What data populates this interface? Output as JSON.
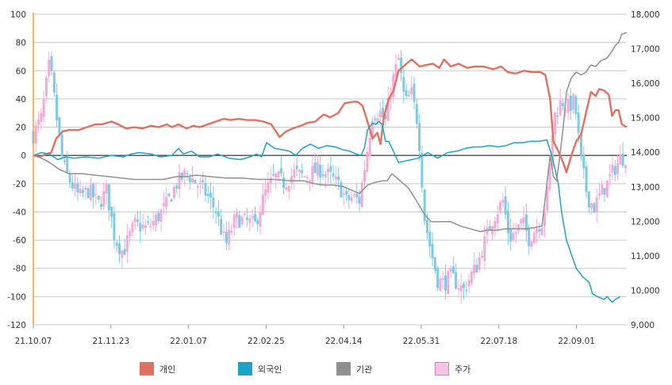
{
  "chart_data": {
    "type": "line",
    "x_labels": [
      "21.10.07",
      "21.11.23",
      "22.01.07",
      "22.02.25",
      "22.04.14",
      "22.05.31",
      "22.07.18",
      "22.09.01"
    ],
    "left_axis": {
      "ticks": [
        "100",
        "80",
        "60",
        "40",
        "20",
        "0",
        "-20",
        "-40",
        "-60",
        "-80",
        "-100",
        "-120"
      ],
      "range": [
        -120,
        100
      ]
    },
    "right_axis": {
      "ticks": [
        "18,000",
        "17,000",
        "16,000",
        "15,000",
        "14,000",
        "13,000",
        "12,000",
        "11,000",
        "10,000",
        "9,000"
      ],
      "range": [
        9000,
        18000
      ]
    },
    "grid": true,
    "legend_position": "bottom",
    "series": [
      {
        "name": "개인",
        "color": "#e07060",
        "axis": "left",
        "points": [
          [
            0,
            0
          ],
          [
            4,
            -1
          ],
          [
            8,
            1
          ],
          [
            11,
            2
          ],
          [
            14,
            12
          ],
          [
            18,
            17
          ],
          [
            22,
            18
          ],
          [
            28,
            18
          ],
          [
            33,
            20
          ],
          [
            38,
            22
          ],
          [
            42,
            22
          ],
          [
            48,
            24
          ],
          [
            52,
            22
          ],
          [
            57,
            19
          ],
          [
            62,
            20
          ],
          [
            67,
            19
          ],
          [
            72,
            21
          ],
          [
            77,
            20
          ],
          [
            82,
            22
          ],
          [
            85,
            20
          ],
          [
            89,
            22
          ],
          [
            94,
            19
          ],
          [
            98,
            21
          ],
          [
            102,
            20
          ],
          [
            107,
            22
          ],
          [
            112,
            24
          ],
          [
            117,
            26
          ],
          [
            121,
            25
          ],
          [
            126,
            26
          ],
          [
            131,
            25
          ],
          [
            136,
            25
          ],
          [
            141,
            24
          ],
          [
            146,
            22
          ],
          [
            151,
            13
          ],
          [
            155,
            17
          ],
          [
            159,
            19
          ],
          [
            164,
            21
          ],
          [
            168,
            23
          ],
          [
            173,
            24
          ],
          [
            178,
            29
          ],
          [
            182,
            27
          ],
          [
            187,
            30
          ],
          [
            191,
            37
          ],
          [
            196,
            38
          ],
          [
            199,
            38
          ],
          [
            202,
            35
          ],
          [
            206,
            20
          ],
          [
            208,
            12
          ],
          [
            211,
            16
          ],
          [
            213,
            8
          ],
          [
            215,
            27
          ],
          [
            218,
            40
          ],
          [
            221,
            46
          ],
          [
            224,
            60
          ],
          [
            228,
            64
          ],
          [
            232,
            68
          ],
          [
            237,
            63
          ],
          [
            241,
            64
          ],
          [
            245,
            65
          ],
          [
            249,
            62
          ],
          [
            252,
            68
          ],
          [
            256,
            63
          ],
          [
            261,
            65
          ],
          [
            266,
            62
          ],
          [
            271,
            63
          ],
          [
            276,
            63
          ],
          [
            282,
            61
          ],
          [
            287,
            63
          ],
          [
            291,
            59
          ],
          [
            296,
            58
          ],
          [
            301,
            60
          ],
          [
            306,
            59
          ],
          [
            311,
            59
          ],
          [
            314,
            57
          ],
          [
            317,
            40
          ],
          [
            319,
            10
          ],
          [
            322,
            3
          ],
          [
            325,
            -5
          ],
          [
            327,
            -12
          ],
          [
            330,
            0
          ],
          [
            333,
            10
          ],
          [
            336,
            15
          ],
          [
            339,
            30
          ],
          [
            342,
            45
          ],
          [
            345,
            42
          ],
          [
            347,
            47
          ],
          [
            350,
            46
          ],
          [
            353,
            43
          ],
          [
            355,
            28
          ],
          [
            357,
            32
          ],
          [
            359,
            32
          ],
          [
            361,
            22
          ],
          [
            364,
            20
          ]
        ]
      },
      {
        "name": "외국인",
        "color": "#1ba3c8",
        "axis": "left",
        "points": [
          [
            0,
            0
          ],
          [
            5,
            2
          ],
          [
            10,
            1
          ],
          [
            15,
            -3
          ],
          [
            20,
            -1
          ],
          [
            25,
            -2
          ],
          [
            32,
            -1
          ],
          [
            40,
            -2
          ],
          [
            48,
            0
          ],
          [
            55,
            -1
          ],
          [
            60,
            1
          ],
          [
            65,
            2
          ],
          [
            72,
            1
          ],
          [
            78,
            -1
          ],
          [
            85,
            0
          ],
          [
            89,
            5
          ],
          [
            92,
            1
          ],
          [
            97,
            3
          ],
          [
            102,
            -1
          ],
          [
            108,
            -1
          ],
          [
            113,
            1
          ],
          [
            120,
            -2
          ],
          [
            127,
            -3
          ],
          [
            133,
            -1
          ],
          [
            137,
            1
          ],
          [
            140,
            -1
          ],
          [
            143,
            9
          ],
          [
            148,
            5
          ],
          [
            153,
            4
          ],
          [
            157,
            3
          ],
          [
            161,
            0
          ],
          [
            165,
            5
          ],
          [
            170,
            8
          ],
          [
            175,
            5
          ],
          [
            180,
            7
          ],
          [
            185,
            6
          ],
          [
            190,
            4
          ],
          [
            194,
            3
          ],
          [
            198,
            1
          ],
          [
            201,
            0
          ],
          [
            203,
            5
          ],
          [
            205,
            18
          ],
          [
            208,
            23
          ],
          [
            210,
            22
          ],
          [
            212,
            24
          ],
          [
            214,
            22
          ],
          [
            216,
            10
          ],
          [
            218,
            10
          ],
          [
            220,
            5
          ],
          [
            224,
            -5
          ],
          [
            228,
            -4
          ],
          [
            232,
            -3
          ],
          [
            236,
            -2
          ],
          [
            242,
            2
          ],
          [
            248,
            -2
          ],
          [
            254,
            2
          ],
          [
            260,
            3
          ],
          [
            265,
            5
          ],
          [
            270,
            6
          ],
          [
            275,
            6
          ],
          [
            280,
            7
          ],
          [
            285,
            6
          ],
          [
            290,
            7
          ],
          [
            295,
            9
          ],
          [
            300,
            9
          ],
          [
            305,
            10
          ],
          [
            310,
            10
          ],
          [
            315,
            11
          ],
          [
            318,
            0
          ],
          [
            320,
            -10
          ],
          [
            322,
            -20
          ],
          [
            324,
            -40
          ],
          [
            327,
            -60
          ],
          [
            330,
            -70
          ],
          [
            333,
            -80
          ],
          [
            337,
            -86
          ],
          [
            341,
            -90
          ],
          [
            343,
            -98
          ],
          [
            346,
            -100
          ],
          [
            350,
            -102
          ],
          [
            352,
            -100
          ],
          [
            355,
            -104
          ],
          [
            357,
            -102
          ],
          [
            360,
            -100
          ]
        ]
      },
      {
        "name": "기관",
        "color": "#909090",
        "axis": "left",
        "points": [
          [
            0,
            0
          ],
          [
            5,
            -2
          ],
          [
            10,
            -5
          ],
          [
            16,
            -10
          ],
          [
            22,
            -13
          ],
          [
            30,
            -13
          ],
          [
            38,
            -14
          ],
          [
            46,
            -15
          ],
          [
            54,
            -16
          ],
          [
            62,
            -17
          ],
          [
            70,
            -17
          ],
          [
            80,
            -17
          ],
          [
            88,
            -15
          ],
          [
            94,
            -15
          ],
          [
            100,
            -14
          ],
          [
            108,
            -15
          ],
          [
            118,
            -16
          ],
          [
            128,
            -16
          ],
          [
            138,
            -17
          ],
          [
            148,
            -17
          ],
          [
            158,
            -18
          ],
          [
            166,
            -18
          ],
          [
            172,
            -20
          ],
          [
            178,
            -21
          ],
          [
            184,
            -21
          ],
          [
            190,
            -22
          ],
          [
            194,
            -24
          ],
          [
            198,
            -26
          ],
          [
            200,
            -27
          ],
          [
            205,
            -21
          ],
          [
            210,
            -19
          ],
          [
            214,
            -18
          ],
          [
            217,
            -18
          ],
          [
            220,
            -13
          ],
          [
            224,
            -17
          ],
          [
            230,
            -23
          ],
          [
            235,
            -32
          ],
          [
            240,
            -42
          ],
          [
            244,
            -47
          ],
          [
            250,
            -47
          ],
          [
            256,
            -47
          ],
          [
            262,
            -50
          ],
          [
            268,
            -52
          ],
          [
            274,
            -54
          ],
          [
            278,
            -53
          ],
          [
            284,
            -53
          ],
          [
            290,
            -52
          ],
          [
            296,
            -52
          ],
          [
            302,
            -52
          ],
          [
            308,
            -51
          ],
          [
            312,
            -50
          ],
          [
            314,
            -30
          ],
          [
            317,
            0
          ],
          [
            319,
            -15
          ],
          [
            321,
            -18
          ],
          [
            323,
            0
          ],
          [
            325,
            20
          ],
          [
            327,
            45
          ],
          [
            330,
            55
          ],
          [
            333,
            59
          ],
          [
            336,
            57
          ],
          [
            339,
            59
          ],
          [
            342,
            64
          ],
          [
            345,
            63
          ],
          [
            348,
            67
          ],
          [
            352,
            69
          ],
          [
            355,
            74
          ],
          [
            357,
            78
          ],
          [
            359,
            80
          ],
          [
            361,
            86
          ],
          [
            364,
            87
          ]
        ]
      }
    ],
    "price_series": {
      "name": "주가",
      "color": "#f5a9d6",
      "alt_color": "#7ccbe6",
      "axis": "right",
      "anchors": [
        [
          0,
          14500
        ],
        [
          5,
          15000
        ],
        [
          10,
          16600
        ],
        [
          14,
          15100
        ],
        [
          18,
          13700
        ],
        [
          22,
          13200
        ],
        [
          28,
          12700
        ],
        [
          34,
          12900
        ],
        [
          40,
          12500
        ],
        [
          45,
          12900
        ],
        [
          50,
          11500
        ],
        [
          55,
          11100
        ],
        [
          62,
          11900
        ],
        [
          70,
          11800
        ],
        [
          76,
          12100
        ],
        [
          82,
          12500
        ],
        [
          88,
          13100
        ],
        [
          94,
          13400
        ],
        [
          100,
          13100
        ],
        [
          106,
          12800
        ],
        [
          112,
          12300
        ],
        [
          118,
          11300
        ],
        [
          124,
          12100
        ],
        [
          130,
          12000
        ],
        [
          136,
          11900
        ],
        [
          142,
          12800
        ],
        [
          148,
          13300
        ],
        [
          154,
          13100
        ],
        [
          160,
          13400
        ],
        [
          166,
          13300
        ],
        [
          170,
          13400
        ],
        [
          176,
          13500
        ],
        [
          182,
          13300
        ],
        [
          188,
          13000
        ],
        [
          192,
          12600
        ],
        [
          196,
          12700
        ],
        [
          200,
          12600
        ],
        [
          204,
          13800
        ],
        [
          208,
          15100
        ],
        [
          212,
          15200
        ],
        [
          216,
          14900
        ],
        [
          220,
          16000
        ],
        [
          224,
          16700
        ],
        [
          228,
          15400
        ],
        [
          232,
          15700
        ],
        [
          236,
          14800
        ],
        [
          240,
          12100
        ],
        [
          244,
          11100
        ],
        [
          248,
          10300
        ],
        [
          252,
          10200
        ],
        [
          256,
          10400
        ],
        [
          260,
          10200
        ],
        [
          264,
          10000
        ],
        [
          268,
          10400
        ],
        [
          272,
          10700
        ],
        [
          276,
          11300
        ],
        [
          282,
          12100
        ],
        [
          288,
          12600
        ],
        [
          292,
          11500
        ],
        [
          296,
          11700
        ],
        [
          300,
          12000
        ],
        [
          304,
          11500
        ],
        [
          308,
          11800
        ],
        [
          312,
          12000
        ],
        [
          316,
          13000
        ],
        [
          318,
          14400
        ],
        [
          320,
          15100
        ],
        [
          324,
          15500
        ],
        [
          328,
          15300
        ],
        [
          332,
          15500
        ],
        [
          336,
          13700
        ],
        [
          340,
          12700
        ],
        [
          344,
          12400
        ],
        [
          348,
          12800
        ],
        [
          352,
          13100
        ],
        [
          356,
          13500
        ],
        [
          360,
          13800
        ],
        [
          364,
          13900
        ]
      ]
    }
  },
  "legend": [
    {
      "label": "개인",
      "color": "#e07060",
      "fill": "#e07060"
    },
    {
      "label": "외국인",
      "color": "#1ba3c8",
      "fill": "#1ba3c8"
    },
    {
      "label": "기관",
      "color": "#909090",
      "fill": "#909090"
    },
    {
      "label": "주가",
      "color": "#e879c0",
      "fill": "#f7c4e6"
    }
  ]
}
